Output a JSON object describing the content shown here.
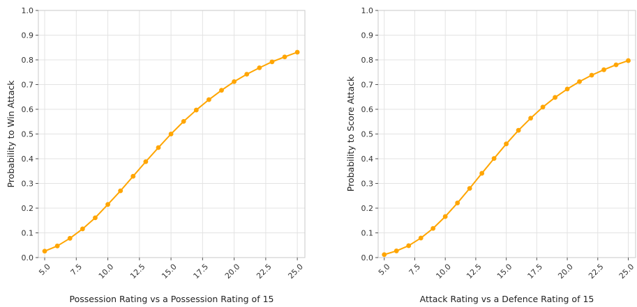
{
  "chart_data": [
    {
      "type": "line",
      "xlabel": "Possession Rating vs a Possession Rating of 15",
      "ylabel": "Probability to Win Attack",
      "xlim": [
        4.5,
        25.6
      ],
      "ylim": [
        0.0,
        1.0
      ],
      "xticks": [
        "5.0",
        "7.5",
        "10.0",
        "12.5",
        "15.0",
        "17.5",
        "20.0",
        "22.5",
        "25.0"
      ],
      "yticks": [
        "0.0",
        "0.1",
        "0.2",
        "0.3",
        "0.4",
        "0.5",
        "0.6",
        "0.7",
        "0.8",
        "0.9",
        "1.0"
      ],
      "grid": true,
      "color": "#FFA500",
      "x": [
        5,
        6,
        7,
        8,
        9,
        10,
        11,
        12,
        13,
        14,
        15,
        16,
        17,
        18,
        19,
        20,
        21,
        22,
        23,
        24,
        25
      ],
      "y": [
        0.026,
        0.047,
        0.078,
        0.116,
        0.161,
        0.215,
        0.27,
        0.329,
        0.388,
        0.445,
        0.5,
        0.551,
        0.597,
        0.639,
        0.677,
        0.712,
        0.742,
        0.768,
        0.792,
        0.812,
        0.831
      ]
    },
    {
      "type": "line",
      "xlabel": "Attack Rating vs a Defence Rating of 15",
      "ylabel": "Probability to Score Attack",
      "xlim": [
        4.5,
        25.6
      ],
      "ylim": [
        0.0,
        1.0
      ],
      "xticks": [
        "5.0",
        "7.5",
        "10.0",
        "12.5",
        "15.0",
        "17.5",
        "20.0",
        "22.5",
        "25.0"
      ],
      "yticks": [
        "0.0",
        "0.1",
        "0.2",
        "0.3",
        "0.4",
        "0.5",
        "0.6",
        "0.7",
        "0.8",
        "0.9",
        "1.0"
      ],
      "grid": true,
      "color": "#FFA500",
      "x": [
        5,
        6,
        7,
        8,
        9,
        10,
        11,
        12,
        13,
        14,
        15,
        16,
        17,
        18,
        19,
        20,
        21,
        22,
        23,
        24,
        25
      ],
      "y": [
        0.012,
        0.027,
        0.048,
        0.079,
        0.118,
        0.166,
        0.221,
        0.28,
        0.341,
        0.401,
        0.46,
        0.515,
        0.564,
        0.609,
        0.648,
        0.682,
        0.712,
        0.738,
        0.76,
        0.78,
        0.797
      ]
    }
  ]
}
